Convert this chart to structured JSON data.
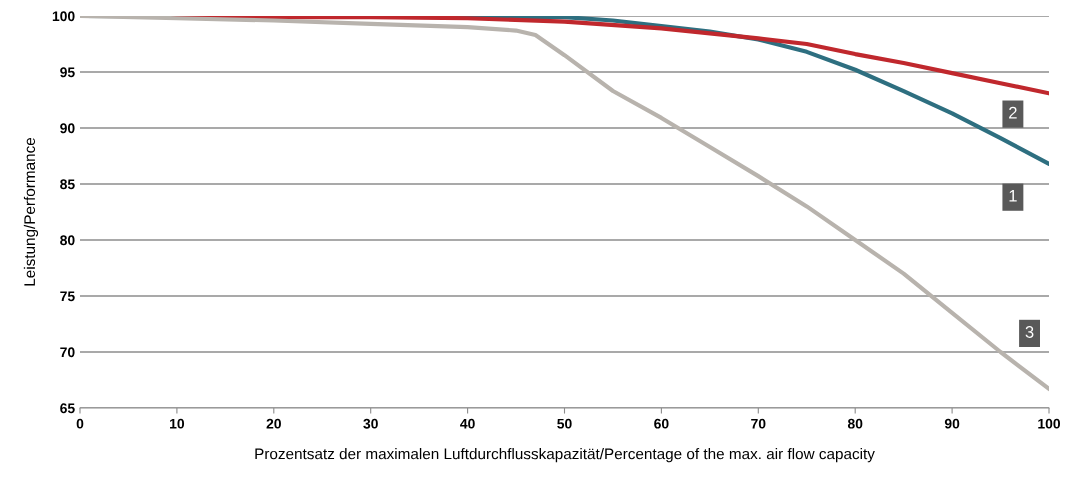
{
  "chart_data": {
    "type": "line",
    "xlabel": "Prozentsatz der maximalen Luftdurchflusskapazität/Percentage of the max. air flow capacity",
    "ylabel": "Leistung/Performance",
    "xlim": [
      0,
      100
    ],
    "xticks": [
      0,
      10,
      20,
      30,
      40,
      50,
      60,
      70,
      80,
      90,
      100
    ],
    "ylim": [
      65,
      100
    ],
    "yticks": [
      65,
      70,
      75,
      80,
      85,
      90,
      95,
      100
    ],
    "grid": "y",
    "marker": "none",
    "line_style": "solid",
    "series": [
      {
        "name": "1",
        "color": "#2e6f80",
        "x": [
          0,
          40,
          45,
          50,
          55,
          60,
          65,
          70,
          75,
          80,
          85,
          90,
          95,
          100
        ],
        "values": [
          100,
          99.9,
          99.9,
          99.9,
          99.6,
          99.1,
          98.6,
          97.9,
          96.8,
          95.2,
          93.3,
          91.3,
          89.1,
          86.8
        ]
      },
      {
        "name": "2",
        "color": "#c0282d",
        "x": [
          0,
          10,
          20,
          30,
          40,
          50,
          60,
          70,
          75,
          80,
          85,
          90,
          95,
          100
        ],
        "values": [
          100,
          100,
          99.9,
          99.9,
          99.8,
          99.5,
          98.9,
          98.0,
          97.5,
          96.6,
          95.8,
          94.9,
          94.0,
          93.1
        ]
      },
      {
        "name": "3",
        "color": "#b8b3ad",
        "x": [
          0,
          10,
          20,
          30,
          40,
          45,
          47,
          50,
          55,
          60,
          65,
          70,
          75,
          80,
          85,
          90,
          95,
          100
        ],
        "values": [
          100,
          99.8,
          99.6,
          99.3,
          99.0,
          98.7,
          98.3,
          96.5,
          93.3,
          90.9,
          88.3,
          85.7,
          83.0,
          80.0,
          77.0,
          73.5,
          70.0,
          66.7
        ]
      }
    ]
  }
}
